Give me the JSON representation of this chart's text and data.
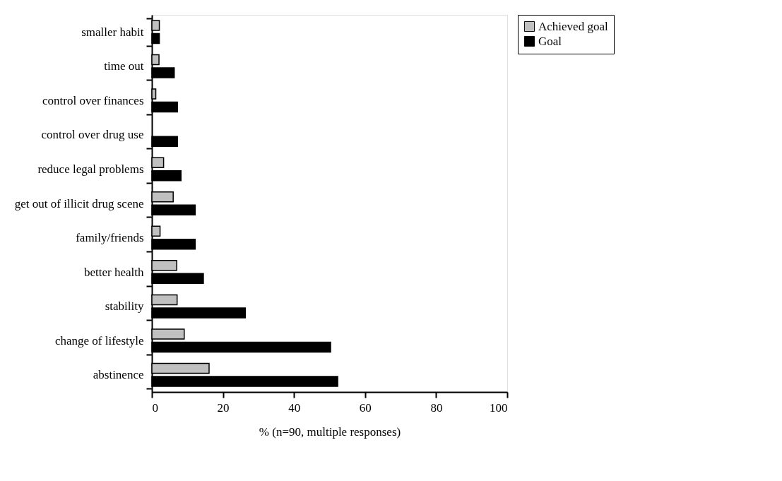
{
  "chart_data": {
    "type": "bar",
    "orientation": "horizontal",
    "xlabel": "% (n=90, multiple responses)",
    "categories": [
      "smaller habit",
      "time out",
      "control over finances",
      "control over drug use",
      "reduce legal problems",
      "get out of illicit drug scene",
      "family/friends",
      "better health",
      "stability",
      "change of lifestyle",
      "abstinence"
    ],
    "series": [
      {
        "name": "Achieved goal",
        "color": "#c0c0c0",
        "values": [
          2.1,
          2.0,
          1.1,
          0,
          3.3,
          6.0,
          2.3,
          7.0,
          7.1,
          9.1,
          16.1
        ]
      },
      {
        "name": "Goal",
        "color": "#000000",
        "values": [
          2.1,
          6.3,
          7.2,
          7.2,
          8.2,
          12.2,
          12.2,
          14.5,
          26.3,
          50.3,
          52.3
        ]
      }
    ],
    "xlim": [
      0,
      100
    ],
    "xticks": [
      0,
      20,
      40,
      60,
      80,
      100
    ],
    "grid": false,
    "legend": "top right"
  }
}
